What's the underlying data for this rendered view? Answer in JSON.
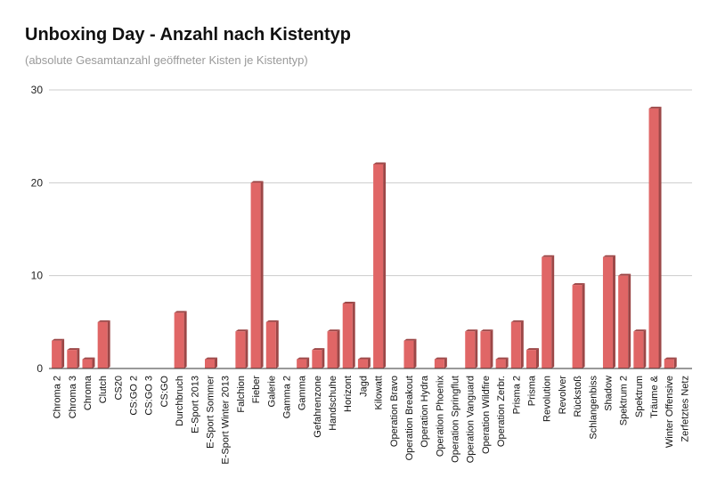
{
  "chart_data": {
    "type": "bar",
    "title": "Unboxing Day - Anzahl nach Kistentyp",
    "subtitle": "(absolute Gesamtanzahl geöffneter Kisten je Kistentyp)",
    "xlabel": "",
    "ylabel": "",
    "ylim": [
      0,
      30
    ],
    "yticks": [
      0,
      10,
      20,
      30
    ],
    "grid": true,
    "legend": "none",
    "categories": [
      "Chroma 2",
      "Chroma 3",
      "Chroma",
      "Clutch",
      "CS20",
      "CS:GO 2",
      "CS:GO 3",
      "CS:GO",
      "Durchbruch",
      "E-Sport 2013",
      "E-Sport Sommer",
      "E-Sport Winter 2013",
      "Falchion",
      "Fieber",
      "Galerie",
      "Gamma 2",
      "Gamma",
      "Gefahrenzone",
      "Handschuhe",
      "Horizont",
      "Jagd",
      "Kilowatt",
      "Operation Bravo",
      "Operation Breakout",
      "Operation Hydra",
      "Operation Phoenix",
      "Operation Springflut",
      "Operation Vanguard",
      "Operation Wildfire",
      "Operation Zerbr.",
      "Prisma 2",
      "Prisma",
      "Revolution",
      "Revolver",
      "Rückstoß",
      "Schlangenbiss",
      "Shadow",
      "Spektrum 2",
      "Spektrum",
      "Träume &",
      "Winter Offensive",
      "Zerfetztes Netz"
    ],
    "values": [
      3,
      2,
      1,
      5,
      0,
      0,
      0,
      0,
      6,
      0,
      1,
      0,
      4,
      20,
      5,
      0,
      1,
      2,
      4,
      7,
      1,
      22,
      0,
      3,
      0,
      1,
      0,
      4,
      4,
      1,
      5,
      2,
      12,
      0,
      9,
      0,
      12,
      10,
      4,
      28,
      1,
      0
    ],
    "bar_color": "#e06666",
    "bar_shadow_color": "#9c4747",
    "grid_color": "#cccccc",
    "axis_color": "#333333"
  }
}
